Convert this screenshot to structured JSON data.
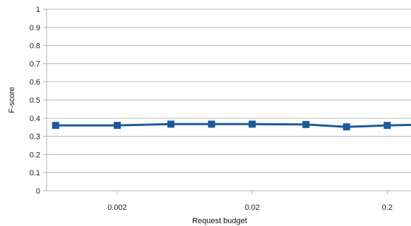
{
  "chart_data": {
    "type": "line",
    "title": "",
    "xlabel": "Request budget",
    "ylabel": "F-score",
    "x_scale": "log",
    "x_tick_labels": [
      "0.002",
      "0.02",
      "0.2"
    ],
    "x_tick_values": [
      0.002,
      0.02,
      0.2
    ],
    "x_range": [
      0.0006,
      0.3
    ],
    "ylim": [
      0,
      1
    ],
    "y_tick_labels": [
      "0",
      "0.1",
      "0.2",
      "0.3",
      "0.4",
      "0.5",
      "0.6",
      "0.7",
      "0.8",
      "0.9",
      "1"
    ],
    "y_tick_values": [
      0,
      0.1,
      0.2,
      0.3,
      0.4,
      0.5,
      0.6,
      0.7,
      0.8,
      0.9,
      1
    ],
    "grid": "horizontal",
    "legend": "none",
    "series": [
      {
        "x": [
          0.0007,
          0.002,
          0.005,
          0.01,
          0.02,
          0.05,
          0.1,
          0.2,
          0.4
        ],
        "values": [
          0.36,
          0.36,
          0.367,
          0.367,
          0.367,
          0.365,
          0.352,
          0.36,
          0.365
        ],
        "color": "#1a5a99",
        "marker": "square"
      }
    ]
  }
}
